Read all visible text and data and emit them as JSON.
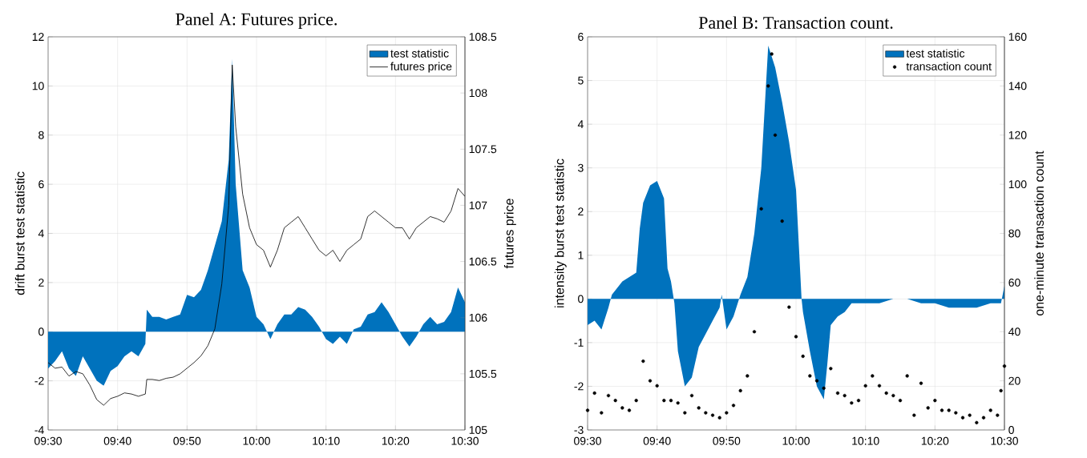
{
  "chart_data": [
    {
      "type": "area",
      "title": "Panel A: Futures price.",
      "ylabel": "drift burst test statistic",
      "y2label": "futures price",
      "x": [
        9.5,
        9.5167,
        9.5333,
        9.55,
        9.5667,
        9.5833,
        9.6,
        9.6167,
        9.6333,
        9.65,
        9.6667,
        9.6833,
        9.7,
        9.7167,
        9.7333,
        9.7367,
        9.75,
        9.7667,
        9.7833,
        9.8,
        9.8167,
        9.8333,
        9.85,
        9.8667,
        9.8833,
        9.9,
        9.9167,
        9.9333,
        9.9417,
        9.95,
        9.9667,
        9.9833,
        10.0,
        10.0167,
        10.0333,
        10.05,
        10.0667,
        10.0833,
        10.1,
        10.1167,
        10.1333,
        10.15,
        10.1667,
        10.1833,
        10.2,
        10.2167,
        10.2333,
        10.25,
        10.2667,
        10.2833,
        10.3,
        10.3167,
        10.3333,
        10.35,
        10.3667,
        10.3833,
        10.4,
        10.4167,
        10.4333,
        10.45,
        10.4667,
        10.4833,
        10.5
      ],
      "series": [
        {
          "name": "test statistic",
          "color": "#0072bd",
          "values": [
            -1.5,
            -1.2,
            -0.8,
            -1.5,
            -1.8,
            -1.0,
            -1.5,
            -2.0,
            -2.2,
            -1.6,
            -1.4,
            -1.0,
            -0.8,
            -1.0,
            -0.5,
            0.9,
            0.6,
            0.6,
            0.5,
            0.6,
            0.7,
            1.5,
            1.4,
            1.7,
            2.5,
            3.5,
            4.5,
            7.0,
            11.1,
            6.0,
            2.5,
            1.8,
            0.6,
            0.3,
            -0.3,
            0.3,
            0.7,
            0.7,
            1.0,
            0.9,
            0.6,
            0.2,
            -0.3,
            -0.5,
            -0.2,
            -0.5,
            0.1,
            0.2,
            0.7,
            0.8,
            1.2,
            0.8,
            0.3,
            -0.2,
            -0.6,
            -0.2,
            0.3,
            0.6,
            0.3,
            0.4,
            0.8,
            1.8,
            1.2
          ]
        },
        {
          "name": "futures price",
          "type": "line",
          "axis": "y2",
          "color": "#000000",
          "values": [
            105.6,
            105.55,
            105.56,
            105.48,
            105.52,
            105.5,
            105.4,
            105.27,
            105.22,
            105.28,
            105.3,
            105.33,
            105.32,
            105.3,
            105.32,
            105.45,
            105.45,
            105.44,
            105.46,
            105.47,
            105.5,
            105.55,
            105.6,
            105.66,
            105.75,
            105.9,
            106.3,
            107.0,
            108.25,
            107.7,
            107.1,
            106.8,
            106.65,
            106.6,
            106.45,
            106.6,
            106.8,
            106.85,
            106.9,
            106.8,
            106.7,
            106.6,
            106.55,
            106.6,
            106.5,
            106.6,
            106.65,
            106.7,
            106.9,
            106.95,
            106.9,
            106.85,
            106.8,
            106.8,
            106.7,
            106.8,
            106.85,
            106.9,
            106.88,
            106.85,
            106.95,
            107.15,
            107.08
          ]
        }
      ],
      "xlim": [
        9.5,
        10.5
      ],
      "xticks": [
        {
          "value": 9.5,
          "label": "09:30"
        },
        {
          "value": 9.6667,
          "label": "09:40"
        },
        {
          "value": 9.8333,
          "label": "09:50"
        },
        {
          "value": 10.0,
          "label": "10:00"
        },
        {
          "value": 10.1667,
          "label": "10:10"
        },
        {
          "value": 10.3333,
          "label": "10:20"
        },
        {
          "value": 10.5,
          "label": "10:30"
        }
      ],
      "ylim": [
        -4,
        12
      ],
      "yticks": [
        -4,
        -2,
        0,
        2,
        4,
        6,
        8,
        10,
        12
      ],
      "y2lim": [
        105,
        108.5
      ],
      "y2ticks": [
        105,
        105.5,
        106,
        106.5,
        107,
        107.5,
        108,
        108.5
      ],
      "grid": true,
      "legend": "top right"
    },
    {
      "type": "area",
      "title": "Panel B: Transaction count.",
      "ylabel": "intensity burst test statistic",
      "y2label": "one-minute transaction count",
      "series": [
        {
          "name": "test statistic",
          "color": "#0072bd",
          "x": [
            9.5,
            9.5167,
            9.5333,
            9.55,
            9.5583,
            9.5667,
            9.5833,
            9.6,
            9.6167,
            9.625,
            9.6333,
            9.65,
            9.6667,
            9.6833,
            9.6917,
            9.7,
            9.7083,
            9.7167,
            9.7333,
            9.75,
            9.7667,
            9.7833,
            9.8,
            9.8167,
            9.8217,
            9.8333,
            9.85,
            9.8667,
            9.8833,
            9.9,
            9.9167,
            9.9333,
            9.95,
            9.9667,
            9.9833,
            10.0,
            10.0133,
            10.0167,
            10.0333,
            10.05,
            10.0667,
            10.075,
            10.0833,
            10.1,
            10.1167,
            10.1333,
            10.1667,
            10.2,
            10.2333,
            10.2667,
            10.3,
            10.3333,
            10.3667,
            10.4,
            10.4333,
            10.4667,
            10.4917,
            10.5
          ],
          "values": [
            -0.6,
            -0.5,
            -0.7,
            -0.2,
            0.1,
            0.2,
            0.4,
            0.5,
            0.6,
            1.6,
            2.2,
            2.6,
            2.7,
            2.3,
            0.7,
            0.4,
            -0.1,
            -1.2,
            -2.0,
            -1.8,
            -1.1,
            -0.8,
            -0.5,
            -0.2,
            0.1,
            -0.7,
            -0.4,
            0.1,
            0.5,
            1.5,
            3.0,
            5.8,
            5.3,
            4.5,
            3.6,
            2.5,
            0.0,
            -0.3,
            -1.2,
            -2.0,
            -2.3,
            -1.5,
            -0.6,
            -0.4,
            -0.3,
            -0.1,
            -0.1,
            -0.1,
            0.0,
            0.0,
            -0.1,
            -0.1,
            -0.2,
            -0.2,
            -0.2,
            -0.1,
            -0.1,
            0.3
          ]
        },
        {
          "name": "transaction count",
          "type": "scatter",
          "marker": "circle",
          "axis": "y2",
          "color": "#000000",
          "x": [
            9.5,
            9.5167,
            9.5333,
            9.55,
            9.5667,
            9.5833,
            9.6,
            9.6167,
            9.6333,
            9.65,
            9.6667,
            9.6833,
            9.7,
            9.7167,
            9.7333,
            9.75,
            9.7667,
            9.7833,
            9.8,
            9.8167,
            9.8333,
            9.85,
            9.8667,
            9.8833,
            9.9,
            9.9167,
            9.9333,
            9.9417,
            9.95,
            9.9667,
            9.9833,
            10.0,
            10.0167,
            10.0333,
            10.05,
            10.0667,
            10.0833,
            10.1,
            10.1167,
            10.1333,
            10.15,
            10.1667,
            10.1833,
            10.2,
            10.2167,
            10.2333,
            10.25,
            10.2667,
            10.2833,
            10.3,
            10.3167,
            10.3333,
            10.35,
            10.3667,
            10.3833,
            10.4,
            10.4167,
            10.4333,
            10.45,
            10.4667,
            10.4833,
            10.4917,
            10.5
          ],
          "values": [
            8,
            15,
            7,
            14,
            12,
            9,
            8,
            12,
            28,
            20,
            18,
            12,
            12,
            11,
            7,
            14,
            9,
            7,
            6,
            5,
            7,
            10,
            16,
            22,
            40,
            90,
            140,
            153,
            120,
            85,
            50,
            38,
            30,
            22,
            20,
            17,
            25,
            15,
            14,
            11,
            12,
            18,
            22,
            18,
            15,
            14,
            12,
            22,
            6,
            19,
            9,
            12,
            8,
            8,
            7,
            5,
            6,
            3,
            5,
            8,
            6,
            16,
            26
          ]
        }
      ],
      "xlim": [
        9.5,
        10.5
      ],
      "xticks": [
        {
          "value": 9.5,
          "label": "09:30"
        },
        {
          "value": 9.6667,
          "label": "09:40"
        },
        {
          "value": 9.8333,
          "label": "09:50"
        },
        {
          "value": 10.0,
          "label": "10:00"
        },
        {
          "value": 10.1667,
          "label": "10:10"
        },
        {
          "value": 10.3333,
          "label": "10:20"
        },
        {
          "value": 10.5,
          "label": "10:30"
        }
      ],
      "ylim": [
        -3,
        6
      ],
      "yticks": [
        -3,
        -2,
        -1,
        0,
        1,
        2,
        3,
        4,
        5,
        6
      ],
      "y2lim": [
        0,
        160
      ],
      "y2ticks": [
        0,
        20,
        40,
        60,
        80,
        100,
        120,
        140,
        160
      ],
      "grid": true,
      "legend": "top right"
    }
  ]
}
